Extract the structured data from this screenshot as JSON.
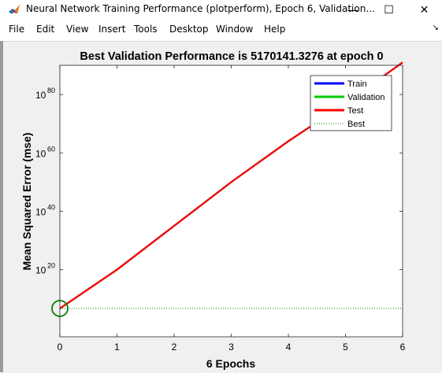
{
  "window": {
    "title": "Neural Network Training Performance (plotperform), Epoch 6, Validation...",
    "minimize_glyph": "—",
    "maximize_glyph": "☐",
    "close_glyph": "✕"
  },
  "menu": {
    "items": [
      "File",
      "Edit",
      "View",
      "Insert",
      "Tools",
      "Desktop",
      "Window",
      "Help"
    ],
    "dock_glyph": "↘"
  },
  "colors": {
    "train": "#0000ff",
    "validation": "#00cc00",
    "test": "#ff0000",
    "best": "#008000",
    "axes_bg": "#ffffff"
  },
  "chart_data": {
    "type": "line",
    "title": "Best Validation Performance is 5170141.3276 at epoch 0",
    "xlabel": "6 Epochs",
    "ylabel": "Mean Squared Error  (mse)",
    "xlim": [
      0,
      6
    ],
    "ylim_log10": [
      -3,
      90
    ],
    "yscale": "log",
    "xticks": [
      0,
      1,
      2,
      3,
      4,
      5,
      6
    ],
    "xtick_labels": [
      "0",
      "1",
      "2",
      "3",
      "4",
      "5",
      "6"
    ],
    "yticks_exponent": [
      20,
      40,
      60,
      80
    ],
    "ytick_base": "10",
    "ytick_exponents": [
      "20",
      "40",
      "60",
      "80"
    ],
    "series": [
      {
        "name": "Train",
        "x": [
          0,
          1,
          2,
          3,
          4,
          5,
          6
        ],
        "log10_y": [
          6.7,
          20,
          35,
          50,
          64,
          77,
          91
        ]
      },
      {
        "name": "Validation",
        "x": [
          0,
          1,
          2,
          3,
          4,
          5,
          6
        ],
        "log10_y": [
          6.7,
          20,
          35,
          50,
          64,
          77,
          91
        ]
      },
      {
        "name": "Test",
        "x": [
          0,
          1,
          2,
          3,
          4,
          5,
          6
        ],
        "log10_y": [
          6.7,
          20,
          35,
          50,
          64,
          77,
          91
        ]
      }
    ],
    "best": {
      "name": "Best",
      "value": 5170141.3276,
      "log10_value": 6.7135,
      "epoch": 0
    },
    "legend": {
      "entries": [
        "Train",
        "Validation",
        "Test",
        "Best"
      ],
      "placement": "top-right"
    },
    "grid": false
  }
}
